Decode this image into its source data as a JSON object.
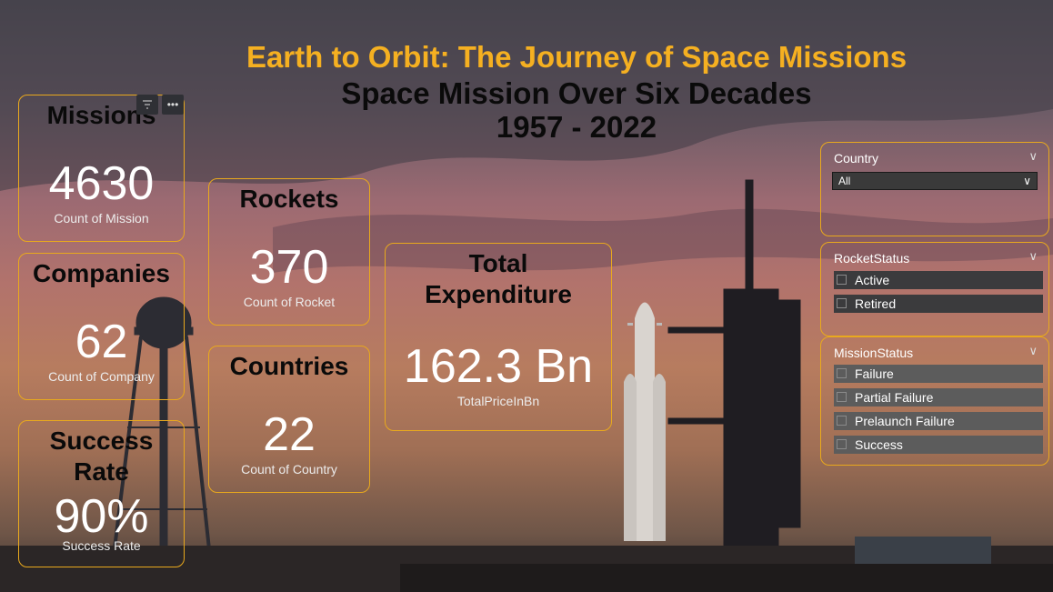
{
  "titles": {
    "main": "Earth to Orbit: The Journey of Space Missions",
    "sub": "Space Mission Over Six Decades",
    "years": "1957 -  2022"
  },
  "cards": {
    "missions": {
      "heading": "Missions",
      "value": "4630",
      "caption": "Count of Mission"
    },
    "companies": {
      "heading": "Companies",
      "value": "62",
      "caption": "Count of Company"
    },
    "success": {
      "heading_line1": "Success",
      "heading_line2": "Rate",
      "value": "90%",
      "caption": "Success Rate"
    },
    "rockets": {
      "heading": "Rockets",
      "value": "370",
      "caption": "Count of Rocket"
    },
    "countries": {
      "heading": "Countries",
      "value": "22",
      "caption": "Count of Country"
    },
    "expenditure": {
      "heading_line1": "Total",
      "heading_line2": "Expenditure",
      "value": "162.3 Bn",
      "caption": "TotalPriceInBn"
    }
  },
  "visual_header": {
    "icons": [
      "filter-icon",
      "more-options-icon"
    ]
  },
  "slicers": {
    "country": {
      "title": "Country",
      "selected": "All"
    },
    "rocket_status": {
      "title": "RocketStatus",
      "options": [
        "Active",
        "Retired"
      ]
    },
    "mission_status": {
      "title": "MissionStatus",
      "options": [
        "Failure",
        "Partial Failure",
        "Prelaunch Failure",
        "Success"
      ]
    }
  },
  "colors": {
    "accent": "#f5b021",
    "border": "#e9a91d",
    "option_bg": "#5c5c5c"
  }
}
